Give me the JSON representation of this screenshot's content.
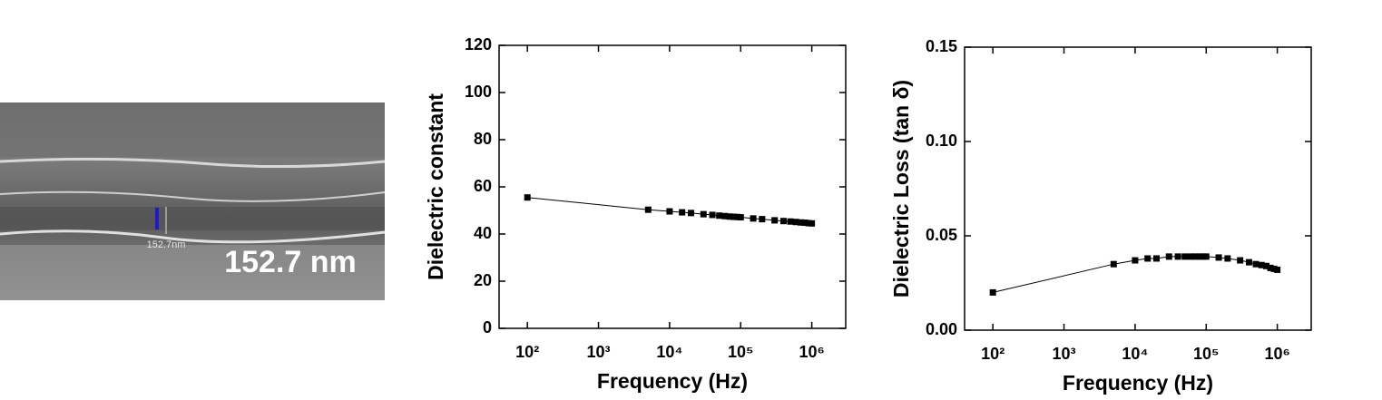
{
  "image": {
    "label": "152.7 nm",
    "scale_label": "152.7nm"
  },
  "chart_data": [
    {
      "type": "line",
      "xlabel": "Frequency (Hz)",
      "ylabel": "Dielectric constant",
      "log_x": true,
      "color": "#000000",
      "x": [
        100,
        5000,
        10000,
        15000,
        20000,
        30000,
        40000,
        50000,
        60000,
        70000,
        80000,
        90000,
        100000,
        150000,
        200000,
        300000,
        400000,
        500000,
        600000,
        700000,
        800000,
        900000,
        1000000
      ],
      "values": [
        55.5,
        50.3,
        49.6,
        49.2,
        48.9,
        48.4,
        48.1,
        47.8,
        47.6,
        47.4,
        47.3,
        47.2,
        47.1,
        46.6,
        46.3,
        45.8,
        45.5,
        45.3,
        45.1,
        44.9,
        44.8,
        44.6,
        44.5
      ],
      "xlim": [
        40,
        3000000
      ],
      "xticks": [
        {
          "value": 100,
          "label": "10²"
        },
        {
          "value": 1000,
          "label": "10³"
        },
        {
          "value": 10000,
          "label": "10⁴"
        },
        {
          "value": 100000,
          "label": "10⁵"
        },
        {
          "value": 1000000,
          "label": "10⁶"
        }
      ],
      "ylim": [
        0,
        120
      ],
      "yticks": [
        0,
        20,
        40,
        60,
        80,
        100,
        120
      ]
    },
    {
      "type": "line",
      "xlabel": "Frequency (Hz)",
      "ylabel": "Dielectric Loss (tan δ)",
      "log_x": true,
      "color": "#000000",
      "x": [
        100,
        5000,
        10000,
        15000,
        20000,
        30000,
        40000,
        50000,
        60000,
        70000,
        80000,
        90000,
        100000,
        150000,
        200000,
        300000,
        400000,
        500000,
        600000,
        700000,
        800000,
        900000,
        1000000
      ],
      "values": [
        0.02,
        0.035,
        0.037,
        0.038,
        0.038,
        0.039,
        0.039,
        0.039,
        0.039,
        0.039,
        0.039,
        0.039,
        0.039,
        0.0385,
        0.038,
        0.037,
        0.036,
        0.035,
        0.0345,
        0.034,
        0.033,
        0.0325,
        0.032
      ],
      "xlim": [
        40,
        3000000
      ],
      "xticks": [
        {
          "value": 100,
          "label": "10²"
        },
        {
          "value": 1000,
          "label": "10³"
        },
        {
          "value": 10000,
          "label": "10⁴"
        },
        {
          "value": 100000,
          "label": "10⁵"
        },
        {
          "value": 1000000,
          "label": "10⁶"
        }
      ],
      "ylim": [
        0,
        0.15
      ],
      "yticks": [
        {
          "value": 0,
          "label": "0.00"
        },
        0.05,
        {
          "value": 0.1,
          "label": "0.10"
        },
        0.15
      ]
    }
  ]
}
